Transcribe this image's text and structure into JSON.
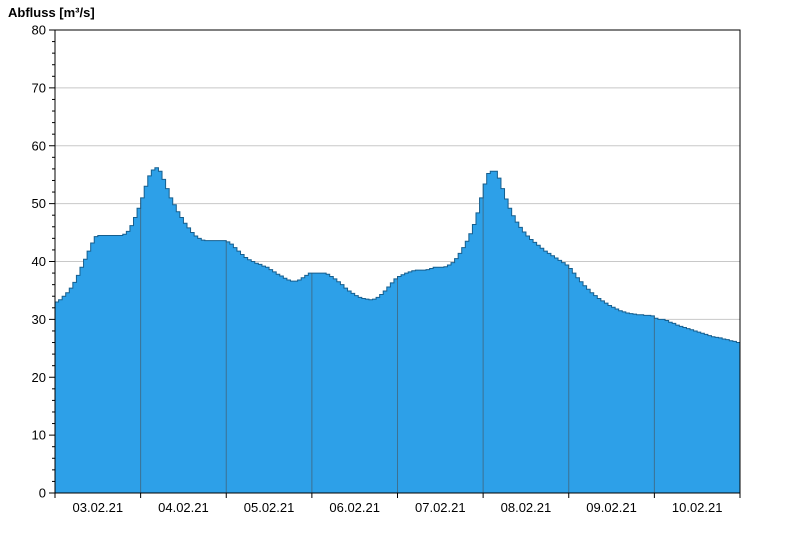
{
  "chart_data": {
    "type": "area",
    "title": "Abfluss [m³/s]",
    "ylabel": "Abfluss [m³/s]",
    "unit": "m³/s",
    "ylim": [
      0,
      80
    ],
    "y_major_step": 10,
    "y_minor_step": 2,
    "y_tick_labels": [
      "0",
      "10",
      "20",
      "30",
      "40",
      "50",
      "60",
      "70",
      "80"
    ],
    "x_day_labels": [
      "03.02.21",
      "04.02.21",
      "05.02.21",
      "06.02.21",
      "07.02.21",
      "08.02.21",
      "09.02.21",
      "10.02.21"
    ],
    "points_per_day": 24,
    "grid": "on",
    "colors": {
      "fill": "#2da0e8",
      "stroke": "#155e8e",
      "h_grid": "#c8c8c8",
      "day_line": "#4a4a4a",
      "axis": "#000000",
      "background": "#ffffff"
    },
    "values": [
      33.0,
      33.4,
      34.0,
      34.6,
      35.4,
      36.4,
      37.6,
      39.0,
      40.4,
      41.8,
      43.2,
      44.3,
      44.5,
      44.5,
      44.5,
      44.5,
      44.5,
      44.5,
      44.5,
      44.7,
      45.2,
      46.2,
      47.6,
      49.2,
      51.0,
      53.0,
      54.8,
      55.8,
      56.2,
      55.6,
      54.2,
      52.6,
      51.0,
      49.8,
      48.6,
      47.6,
      46.6,
      45.8,
      45.0,
      44.4,
      44.0,
      43.7,
      43.6,
      43.6,
      43.6,
      43.6,
      43.6,
      43.6,
      43.4,
      43.0,
      42.4,
      41.8,
      41.2,
      40.7,
      40.3,
      40.0,
      39.7,
      39.5,
      39.2,
      39.0,
      38.6,
      38.2,
      37.8,
      37.5,
      37.1,
      36.8,
      36.6,
      36.6,
      36.8,
      37.2,
      37.6,
      38.0,
      38.0,
      38.0,
      38.0,
      38.0,
      37.8,
      37.4,
      37.0,
      36.5,
      36.0,
      35.4,
      34.9,
      34.5,
      34.1,
      33.8,
      33.6,
      33.5,
      33.4,
      33.5,
      33.8,
      34.3,
      34.9,
      35.6,
      36.3,
      37.0,
      37.4,
      37.7,
      38.0,
      38.2,
      38.4,
      38.5,
      38.5,
      38.5,
      38.6,
      38.8,
      39.0,
      39.0,
      39.0,
      39.1,
      39.4,
      39.8,
      40.5,
      41.4,
      42.4,
      43.5,
      44.8,
      46.4,
      48.4,
      51.0,
      53.4,
      55.2,
      55.6,
      55.6,
      54.4,
      52.6,
      50.8,
      49.2,
      47.9,
      46.8,
      45.9,
      45.1,
      44.4,
      43.8,
      43.3,
      42.8,
      42.3,
      41.8,
      41.4,
      41.0,
      40.6,
      40.2,
      39.8,
      39.4,
      38.8,
      38.0,
      37.2,
      36.5,
      35.8,
      35.2,
      34.6,
      34.1,
      33.6,
      33.2,
      32.8,
      32.4,
      32.1,
      31.8,
      31.5,
      31.3,
      31.1,
      31.0,
      30.9,
      30.8,
      30.8,
      30.7,
      30.7,
      30.6,
      30.2,
      30.0,
      30.0,
      29.8,
      29.5,
      29.3,
      29.0,
      28.8,
      28.6,
      28.4,
      28.2,
      28.0,
      27.8,
      27.6,
      27.4,
      27.2,
      27.0,
      26.9,
      26.8,
      26.6,
      26.5,
      26.3,
      26.2,
      26.0
    ]
  }
}
